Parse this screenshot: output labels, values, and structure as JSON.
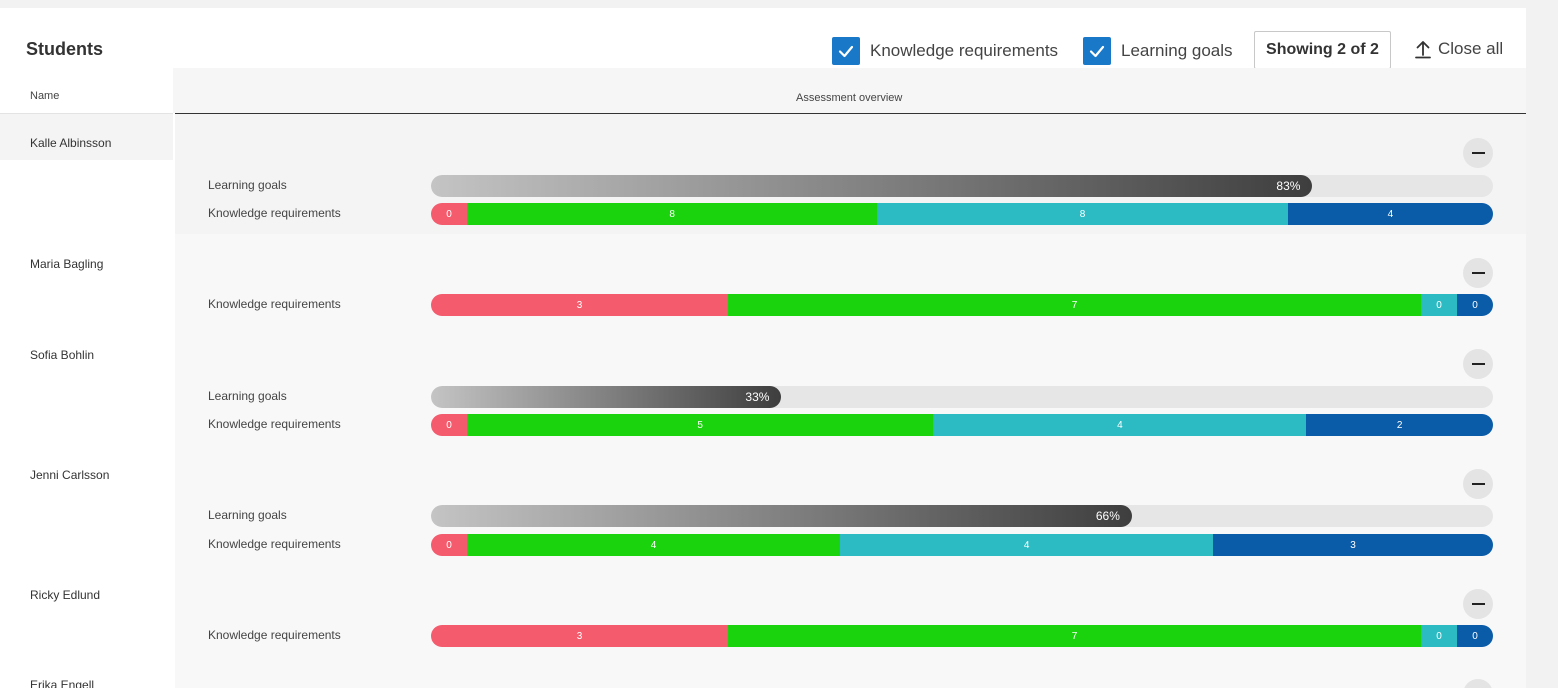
{
  "title": "Students",
  "filters": {
    "knowledge_requirements": {
      "label": "Knowledge requirements",
      "checked": true
    },
    "learning_goals": {
      "label": "Learning goals",
      "checked": true
    }
  },
  "showing_label": "Showing 2 of 2",
  "close_all_label": "Close all",
  "columns": {
    "name": "Name",
    "overview": "Assessment overview"
  },
  "labels": {
    "learning_goals": "Learning goals",
    "knowledge_requirements": "Knowledge requirements"
  },
  "colors": {
    "kr_red": "#f45c6e",
    "kr_green": "#1bd30d",
    "kr_teal": "#2dbbc3",
    "kr_blue": "#0b5ca8",
    "checkbox": "#1a78c9"
  },
  "students": [
    {
      "name": "Kalle Albinsson",
      "learning_goals": {
        "percent": 83,
        "label": "83%"
      },
      "knowledge_requirements": [
        0,
        8,
        8,
        4
      ]
    },
    {
      "name": "Maria Bagling",
      "knowledge_requirements": [
        3,
        7,
        0,
        0
      ]
    },
    {
      "name": "Sofia Bohlin",
      "learning_goals": {
        "percent": 33,
        "label": "33%"
      },
      "knowledge_requirements": [
        0,
        5,
        4,
        2
      ]
    },
    {
      "name": "Jenni Carlsson",
      "learning_goals": {
        "percent": 66,
        "label": "66%"
      },
      "knowledge_requirements": [
        0,
        4,
        4,
        3
      ]
    },
    {
      "name": "Ricky Edlund",
      "knowledge_requirements": [
        3,
        7,
        0,
        0
      ]
    },
    {
      "name": "Erika Engell"
    }
  ]
}
